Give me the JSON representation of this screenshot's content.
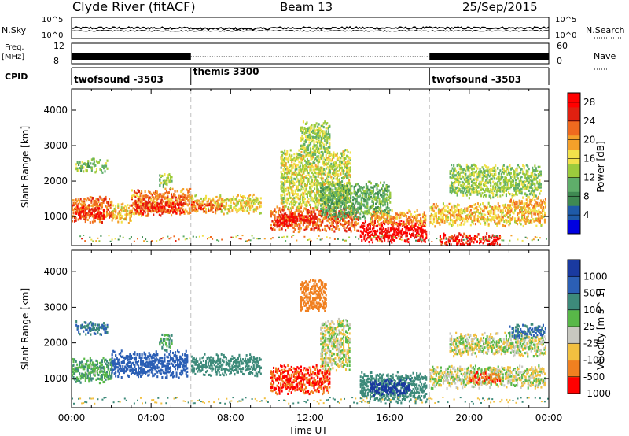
{
  "header": {
    "radar": "Clyde River (fitACF)",
    "beam": "Beam 13",
    "date": "25/Sep/2015"
  },
  "status_panels": {
    "nsky_label": "N.Sky",
    "nsearch_label": "N.Search",
    "freq_label_1": "Freq.",
    "freq_label_2": "[MHz]",
    "nave_label": "Nave",
    "cpid_label": "CPID",
    "nsky_ticks": [
      "10^5",
      "10^0"
    ],
    "nsearch_ticks": [
      "10^5",
      "10^0"
    ],
    "freq_ticks": [
      "12",
      "8"
    ],
    "nave_ticks": [
      "60",
      "0"
    ],
    "cpid_segments": [
      {
        "label": "twofsound -3503",
        "start_hour": 0,
        "end_hour": 6
      },
      {
        "label": "themis 3300",
        "start_hour": 6,
        "end_hour": 18
      },
      {
        "label": "twofsound -3503",
        "start_hour": 18,
        "end_hour": 24
      }
    ]
  },
  "chart_data": [
    {
      "type": "heatmap",
      "name": "power",
      "ylabel": "Slant Range [km]",
      "xlabel": "Time UT",
      "xlim": [
        0,
        24
      ],
      "ylim": [
        180,
        4600
      ],
      "yticks": [
        1000,
        2000,
        3000,
        4000
      ],
      "colorbar": {
        "label": "Power [dB]",
        "ticks": [
          4,
          8,
          12,
          16,
          20,
          24,
          28
        ],
        "range": [
          0,
          30
        ],
        "colors": [
          "#0000e0",
          "#1e5aa8",
          "#3f8a52",
          "#5fae6a",
          "#9ccb3c",
          "#f2e14a",
          "#f4a02a",
          "#ef6a1f",
          "#e02010",
          "#ff0000"
        ]
      },
      "cells": [
        {
          "start_hour": 0.2,
          "end_hour": 1.8,
          "range_min": 2300,
          "range_max": 2550,
          "value": 12
        },
        {
          "start_hour": 0.0,
          "end_hour": 2.0,
          "range_min": 900,
          "range_max": 1500,
          "value": 22
        },
        {
          "start_hour": 0.2,
          "end_hour": 1.6,
          "range_min": 1000,
          "range_max": 1200,
          "value": 27
        },
        {
          "start_hour": 2.0,
          "end_hour": 3.0,
          "range_min": 900,
          "range_max": 1300,
          "value": 18
        },
        {
          "start_hour": 3.0,
          "end_hour": 6.0,
          "range_min": 1100,
          "range_max": 1700,
          "value": 21
        },
        {
          "start_hour": 3.2,
          "end_hour": 5.6,
          "range_min": 1150,
          "range_max": 1350,
          "value": 26
        },
        {
          "start_hour": 4.4,
          "end_hour": 5.0,
          "range_min": 1850,
          "range_max": 2150,
          "value": 12
        },
        {
          "start_hour": 6.0,
          "end_hour": 9.5,
          "range_min": 1150,
          "range_max": 1550,
          "value": 17
        },
        {
          "start_hour": 6.0,
          "end_hour": 7.5,
          "range_min": 1200,
          "range_max": 1350,
          "value": 24
        },
        {
          "start_hour": 10.0,
          "end_hour": 14.4,
          "range_min": 650,
          "range_max": 1200,
          "value": 23
        },
        {
          "start_hour": 10.3,
          "end_hour": 12.2,
          "range_min": 800,
          "range_max": 1000,
          "value": 28
        },
        {
          "start_hour": 10.5,
          "end_hour": 14.0,
          "range_min": 1300,
          "range_max": 2800,
          "value": 15
        },
        {
          "start_hour": 11.5,
          "end_hour": 13.0,
          "range_min": 2800,
          "range_max": 3600,
          "value": 14
        },
        {
          "start_hour": 12.5,
          "end_hour": 16.0,
          "range_min": 1000,
          "range_max": 1900,
          "value": 10
        },
        {
          "start_hour": 14.5,
          "end_hour": 17.8,
          "range_min": 350,
          "range_max": 800,
          "value": 29
        },
        {
          "start_hour": 15.0,
          "end_hour": 17.8,
          "range_min": 800,
          "range_max": 1100,
          "value": 20
        },
        {
          "start_hour": 18.0,
          "end_hour": 23.8,
          "range_min": 800,
          "range_max": 1300,
          "value": 18
        },
        {
          "start_hour": 19.0,
          "end_hour": 23.6,
          "range_min": 1600,
          "range_max": 2400,
          "value": 13
        },
        {
          "start_hour": 18.5,
          "end_hour": 21.5,
          "range_min": 250,
          "range_max": 450,
          "value": 27
        },
        {
          "start_hour": 22.0,
          "end_hour": 23.8,
          "range_min": 1300,
          "range_max": 1500,
          "value": 20
        }
      ]
    },
    {
      "type": "heatmap",
      "name": "velocity",
      "ylabel": "Slant Range [km]",
      "xlabel": "Time UT",
      "xlim": [
        0,
        24
      ],
      "ylim": [
        180,
        4600
      ],
      "yticks": [
        1000,
        2000,
        3000,
        4000
      ],
      "xticks": [
        "00:00",
        "04:00",
        "08:00",
        "12:00",
        "16:00",
        "20:00",
        "00:00"
      ],
      "colorbar": {
        "label": "Velocity [m s^-1]",
        "ticks": [
          1000,
          500,
          100,
          25,
          -25,
          -100,
          -500,
          -1000
        ],
        "colors": [
          "#1a3aa0",
          "#2b5fb5",
          "#3d8a7a",
          "#58b848",
          "#c8c8c0",
          "#f2c040",
          "#f08020",
          "#ff0000"
        ]
      },
      "cells": [
        {
          "start_hour": 0.2,
          "end_hour": 1.8,
          "range_min": 2300,
          "range_max": 2550,
          "value": 500
        },
        {
          "start_hour": 0.0,
          "end_hour": 2.0,
          "range_min": 950,
          "range_max": 1500,
          "value": 100
        },
        {
          "start_hour": 2.0,
          "end_hour": 5.8,
          "range_min": 1100,
          "range_max": 1700,
          "value": 700
        },
        {
          "start_hour": 4.4,
          "end_hour": 5.0,
          "range_min": 1850,
          "range_max": 2150,
          "value": 100
        },
        {
          "start_hour": 6.0,
          "end_hour": 9.5,
          "range_min": 1150,
          "range_max": 1600,
          "value": 200
        },
        {
          "start_hour": 10.0,
          "end_hour": 13.0,
          "range_min": 650,
          "range_max": 1300,
          "value": -500
        },
        {
          "start_hour": 12.5,
          "end_hour": 14.0,
          "range_min": 1300,
          "range_max": 2600,
          "value": 0
        },
        {
          "start_hour": 11.5,
          "end_hour": 12.8,
          "range_min": 2900,
          "range_max": 3700,
          "value": -300
        },
        {
          "start_hour": 14.5,
          "end_hour": 17.8,
          "range_min": 400,
          "range_max": 1100,
          "value": 400
        },
        {
          "start_hour": 15.0,
          "end_hour": 17.0,
          "range_min": 600,
          "range_max": 900,
          "value": 1100
        },
        {
          "start_hour": 18.0,
          "end_hour": 23.8,
          "range_min": 800,
          "range_max": 1300,
          "value": 0
        },
        {
          "start_hour": 19.0,
          "end_hour": 23.8,
          "range_min": 1700,
          "range_max": 2200,
          "value": 0
        },
        {
          "start_hour": 22.0,
          "end_hour": 23.8,
          "range_min": 2200,
          "range_max": 2450,
          "value": 500
        },
        {
          "start_hour": 20.0,
          "end_hour": 21.5,
          "range_min": 900,
          "range_max": 1100,
          "value": -500
        }
      ]
    }
  ]
}
